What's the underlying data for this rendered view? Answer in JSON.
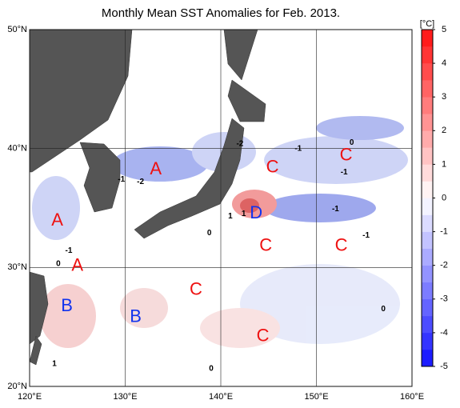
{
  "title": "Monthly Mean SST Anomalies for Feb. 2013.",
  "map": {
    "xlim": [
      120,
      160
    ],
    "ylim": [
      20,
      50
    ],
    "xticks": [
      {
        "value": 120,
        "label": "120°E"
      },
      {
        "value": 130,
        "label": "130°E"
      },
      {
        "value": 140,
        "label": "140°E"
      },
      {
        "value": 150,
        "label": "150°E"
      },
      {
        "value": 160,
        "label": "160°E"
      }
    ],
    "yticks": [
      {
        "value": 20,
        "label": "20°N"
      },
      {
        "value": 30,
        "label": "30°N"
      },
      {
        "value": 40,
        "label": "40°N"
      },
      {
        "value": 50,
        "label": "50°N"
      }
    ],
    "grid": true,
    "markers": [
      {
        "text": "A",
        "lon": 133.2,
        "lat": 38.2,
        "color": "#ee1111"
      },
      {
        "text": "A",
        "lon": 122.9,
        "lat": 33.9,
        "color": "#ee1111"
      },
      {
        "text": "A",
        "lon": 125.0,
        "lat": 30.1,
        "color": "#ee1111"
      },
      {
        "text": "B",
        "lon": 123.9,
        "lat": 26.7,
        "color": "#1133ee"
      },
      {
        "text": "B",
        "lon": 131.1,
        "lat": 25.8,
        "color": "#1133ee"
      },
      {
        "text": "C",
        "lon": 145.4,
        "lat": 38.4,
        "color": "#ee1111"
      },
      {
        "text": "C",
        "lon": 153.1,
        "lat": 39.4,
        "color": "#ee1111"
      },
      {
        "text": "D",
        "lon": 143.7,
        "lat": 34.5,
        "color": "#1133ee"
      },
      {
        "text": "C",
        "lon": 144.7,
        "lat": 31.8,
        "color": "#ee1111"
      },
      {
        "text": "C",
        "lon": 152.6,
        "lat": 31.8,
        "color": "#ee1111"
      },
      {
        "text": "C",
        "lon": 137.4,
        "lat": 28.1,
        "color": "#ee1111"
      },
      {
        "text": "C",
        "lon": 144.4,
        "lat": 24.2,
        "color": "#ee1111"
      }
    ],
    "contour_labels": [
      {
        "text": "-2",
        "lon": 142.0,
        "lat": 40.4
      },
      {
        "text": "-1",
        "lon": 148.1,
        "lat": 40.0
      },
      {
        "text": "0",
        "lon": 153.7,
        "lat": 40.5
      },
      {
        "text": "-1",
        "lon": 152.9,
        "lat": 38.0
      },
      {
        "text": "-1",
        "lon": 129.6,
        "lat": 37.4
      },
      {
        "text": "-2",
        "lon": 131.6,
        "lat": 37.2
      },
      {
        "text": "1",
        "lon": 141.0,
        "lat": 34.3
      },
      {
        "text": "1",
        "lon": 142.4,
        "lat": 34.5
      },
      {
        "text": "0",
        "lon": 138.8,
        "lat": 32.9
      },
      {
        "text": "-1",
        "lon": 152.0,
        "lat": 34.9
      },
      {
        "text": "-1",
        "lon": 155.2,
        "lat": 32.7
      },
      {
        "text": "-1",
        "lon": 124.1,
        "lat": 31.4
      },
      {
        "text": "0",
        "lon": 123.0,
        "lat": 30.3
      },
      {
        "text": "0",
        "lon": 157.0,
        "lat": 26.5
      },
      {
        "text": "0",
        "lon": 139.0,
        "lat": 21.5
      },
      {
        "text": "1",
        "lon": 122.6,
        "lat": 21.9
      }
    ]
  },
  "colorbar": {
    "unit": "[°C]",
    "lim": [
      -5,
      5
    ],
    "ticks": [
      -5,
      -4,
      -3,
      -2,
      -1,
      0,
      1,
      2,
      3,
      4,
      5
    ],
    "colors": [
      "#1010ff",
      "#ffffff",
      "#ff1010"
    ]
  }
}
